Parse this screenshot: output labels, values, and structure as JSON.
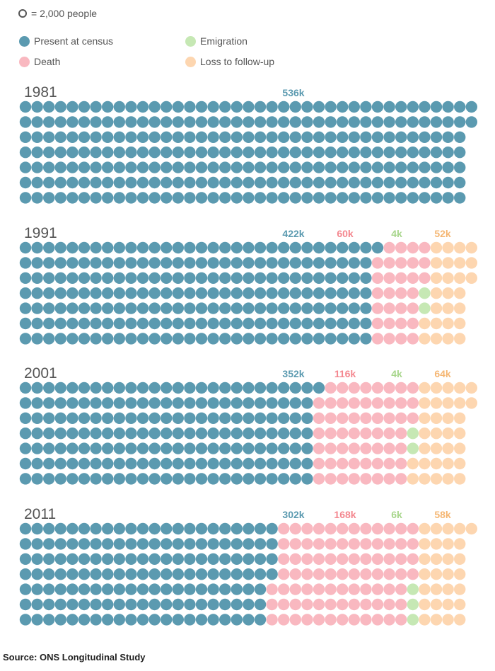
{
  "unit_label": "= 2,000 people",
  "legend": {
    "present": "Present at census",
    "emigration": "Emigration",
    "death": "Death",
    "loss": "Loss to follow-up"
  },
  "colors": {
    "present": "#5b9ab0",
    "death": "#f9b8c0",
    "emigration": "#c6e8b4",
    "loss": "#fdd6b0",
    "present_label": "#5b9ab0",
    "death_label": "#f4878f",
    "emigration_label": "#a8d68c",
    "loss_label": "#f5b774",
    "year": "#555555"
  },
  "source": "Source: ONS Longitudinal Study",
  "chart_data": {
    "type": "waffle",
    "unit_people": 2000,
    "categories": [
      "Present at census",
      "Death",
      "Emigration",
      "Loss to follow-up"
    ],
    "years": [
      {
        "year": "1981",
        "present": 536,
        "death": 0,
        "emigration": 0,
        "loss": 0,
        "labels": {
          "present": "536k"
        }
      },
      {
        "year": "1991",
        "present": 422,
        "death": 60,
        "emigration": 4,
        "loss": 52,
        "labels": {
          "present": "422k",
          "death": "60k",
          "emigration": "4k",
          "loss": "52k"
        }
      },
      {
        "year": "2001",
        "present": 352,
        "death": 116,
        "emigration": 4,
        "loss": 64,
        "labels": {
          "present": "352k",
          "death": "116k",
          "emigration": "4k",
          "loss": "64k"
        }
      },
      {
        "year": "2011",
        "present": 302,
        "death": 168,
        "emigration": 6,
        "loss": 58,
        "labels": {
          "present": "302k",
          "death": "168k",
          "emigration": "6k",
          "loss": "58k"
        }
      }
    ]
  }
}
